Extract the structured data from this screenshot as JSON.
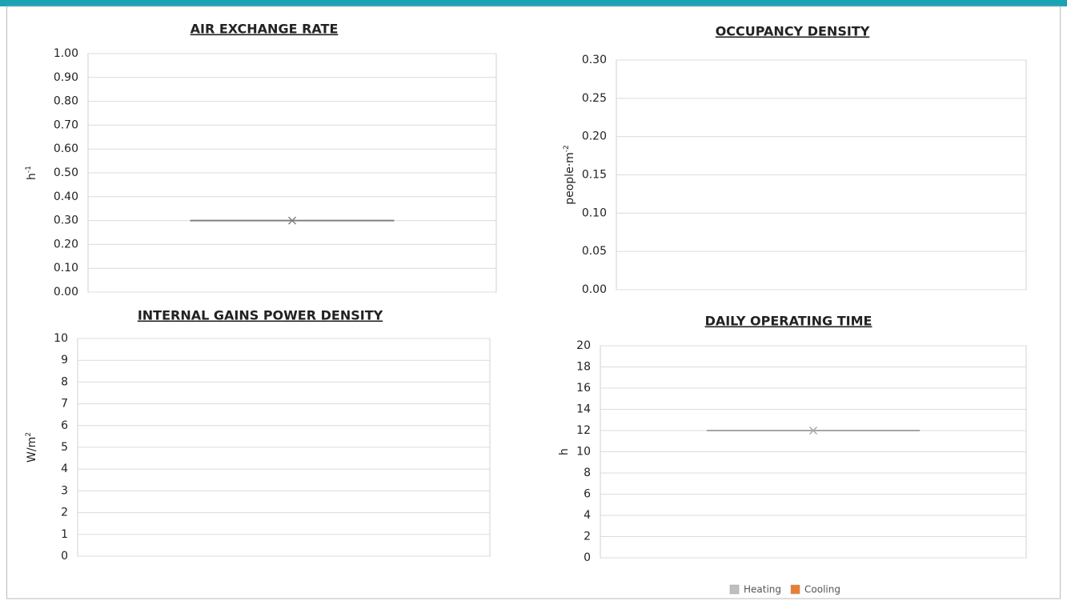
{
  "chart_data": [
    {
      "type": "box",
      "title": "AIR EXCHANGE RATE",
      "y_label": {
        "text": "h",
        "sup": "-1"
      },
      "ylim": [
        0,
        1
      ],
      "yticks": [
        {
          "value": 0,
          "label": "0.00"
        },
        {
          "value": 0.1,
          "label": "0.10"
        },
        {
          "value": 0.2,
          "label": "0.20"
        },
        {
          "value": 0.3,
          "label": "0.30"
        },
        {
          "value": 0.4,
          "label": "0.40"
        },
        {
          "value": 0.5,
          "label": "0.50"
        },
        {
          "value": 0.6,
          "label": "0.60"
        },
        {
          "value": 0.7,
          "label": "0.70"
        },
        {
          "value": 0.8,
          "label": "0.80"
        },
        {
          "value": 0.9,
          "label": "0.90"
        },
        {
          "value": 1,
          "label": "1.00"
        }
      ],
      "grid": true,
      "series": [
        {
          "color": "#808080",
          "median": [
            0.3
          ],
          "mean": [
            0.3
          ]
        }
      ]
    },
    {
      "type": "box",
      "title": "OCCUPANCY DENSITY",
      "y_label": {
        "text": "people·m",
        "sup": "-2"
      },
      "ylim": [
        0,
        0.3
      ],
      "yticks": [
        {
          "value": 0,
          "label": "0.00"
        },
        {
          "value": 0.05,
          "label": "0.05"
        },
        {
          "value": 0.1,
          "label": "0.10"
        },
        {
          "value": 0.15,
          "label": "0.15"
        },
        {
          "value": 0.2,
          "label": "0.20"
        },
        {
          "value": 0.25,
          "label": "0.25"
        },
        {
          "value": 0.3,
          "label": "0.30"
        }
      ],
      "grid": true,
      "series": []
    },
    {
      "type": "box",
      "title": "INTERNAL GAINS POWER DENSITY",
      "y_label": {
        "text": "W/m",
        "sup": "2"
      },
      "ylim": [
        0,
        10
      ],
      "yticks": [
        0,
        1,
        2,
        3,
        4,
        5,
        6,
        7,
        8,
        9,
        10
      ],
      "grid": true,
      "series": []
    },
    {
      "type": "box",
      "title": "DAILY OPERATING TIME",
      "y_label": {
        "text": "h"
      },
      "ylim": [
        0,
        20
      ],
      "yticks": [
        0,
        2,
        4,
        6,
        8,
        10,
        12,
        14,
        16,
        18,
        20
      ],
      "grid": true,
      "series": [
        {
          "color": "#a6a6a6",
          "median": [
            12
          ],
          "mean": [
            12
          ]
        }
      ]
    }
  ],
  "legend": [
    {
      "name": "Heating",
      "color": "#bfbfbf"
    },
    {
      "name": "Cooling",
      "color": "#ed7d31"
    }
  ]
}
